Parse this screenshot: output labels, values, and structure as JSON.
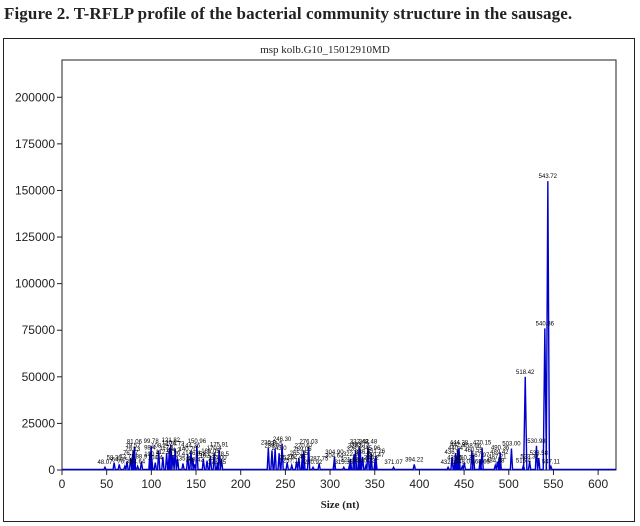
{
  "caption": "Figure 2. T-RFLP profile of the bacterial community structure in the sausage.",
  "chart_data": {
    "type": "line",
    "title": "msp kolb.G10_15012910MD",
    "xlabel": "Size (nt)",
    "ylabel": "",
    "xlim": [
      0,
      620
    ],
    "ylim": [
      0,
      220000
    ],
    "x_ticks": [
      0,
      50,
      100,
      150,
      200,
      250,
      300,
      350,
      400,
      450,
      500,
      550,
      600
    ],
    "y_ticks": [
      0,
      25000,
      50000,
      75000,
      100000,
      125000,
      150000,
      175000,
      200000
    ],
    "x_tick_labels": [
      "0",
      "50",
      "100",
      "150",
      "200",
      "250",
      "300",
      "350",
      "400",
      "450",
      "500",
      "550",
      "600"
    ],
    "y_tick_labels": [
      "0",
      "25000",
      "50000",
      "75000",
      "100000",
      "125000",
      "150000",
      "175000",
      "200000"
    ],
    "grid": false,
    "legend": "none",
    "colors": {
      "trace": "#0000cc",
      "axis": "#222222"
    },
    "series": [
      {
        "peaks": [
          {
            "x": 48.07,
            "y": 1500,
            "label": "48.07"
          },
          {
            "x": 58.36,
            "y": 4000,
            "label": "58.36"
          },
          {
            "x": 64.07,
            "y": 3000,
            "label": "64.07"
          },
          {
            "x": 70.35,
            "y": 2000,
            "label": "70.35"
          },
          {
            "x": 72.73,
            "y": 4500,
            "label": "72.73"
          },
          {
            "x": 76.77,
            "y": 6500,
            "label": "76.77"
          },
          {
            "x": 79.13,
            "y": 8500,
            "label": "79.13"
          },
          {
            "x": 79.57,
            "y": 10500,
            "label": "79.57"
          },
          {
            "x": 81.06,
            "y": 12500,
            "label": "81.06"
          },
          {
            "x": 84.64,
            "y": 2000,
            "label": "84.64"
          },
          {
            "x": 88.9,
            "y": 4500,
            "label": "88.9"
          },
          {
            "x": 98.4,
            "y": 9500,
            "label": "98.4"
          },
          {
            "x": 99.78,
            "y": 13000,
            "label": "99.78"
          },
          {
            "x": 100.5,
            "y": 6000,
            "label": "100.5"
          },
          {
            "x": 104.4,
            "y": 4000,
            "label": "104.4"
          },
          {
            "x": 108.2,
            "y": 10500,
            "label": "108.2"
          },
          {
            "x": 112.9,
            "y": 7000,
            "label": "112.9"
          },
          {
            "x": 117.1,
            "y": 9000,
            "label": "117.1"
          },
          {
            "x": 120.2,
            "y": 12000,
            "label": "120.2"
          },
          {
            "x": 121.82,
            "y": 13500,
            "label": "121.82"
          },
          {
            "x": 124.2,
            "y": 8000,
            "label": "124.2"
          },
          {
            "x": 126.72,
            "y": 11500,
            "label": "126.72"
          },
          {
            "x": 129.4,
            "y": 6000,
            "label": "129.4"
          },
          {
            "x": 135.4,
            "y": 3500,
            "label": "135.4"
          },
          {
            "x": 140.7,
            "y": 8500,
            "label": "140.70"
          },
          {
            "x": 144.36,
            "y": 10500,
            "label": "144.36"
          },
          {
            "x": 146.4,
            "y": 6500,
            "label": "146.4"
          },
          {
            "x": 148.42,
            "y": 3000,
            "label": "148.42"
          },
          {
            "x": 150.96,
            "y": 13000,
            "label": "150.96"
          },
          {
            "x": 158.2,
            "y": 6000,
            "label": "158.2"
          },
          {
            "x": 162.3,
            "y": 5000,
            "label": "162.3"
          },
          {
            "x": 166.05,
            "y": 7500,
            "label": "166.05"
          },
          {
            "x": 170.4,
            "y": 9000,
            "label": "170.4"
          },
          {
            "x": 173.35,
            "y": 1500,
            "label": "173.35"
          },
          {
            "x": 174.0,
            "y": 4000,
            "label": "174.00"
          },
          {
            "x": 175.91,
            "y": 11000,
            "label": "175.91"
          },
          {
            "x": 178.5,
            "y": 6000,
            "label": "178.5"
          },
          {
            "x": 230.9,
            "y": 12000,
            "label": "230.9"
          },
          {
            "x": 235.0,
            "y": 10500,
            "label": "235.0"
          },
          {
            "x": 238.5,
            "y": 11500,
            "label": "238.5"
          },
          {
            "x": 243.0,
            "y": 9000,
            "label": "243.0"
          },
          {
            "x": 246.3,
            "y": 14000,
            "label": "246.30"
          },
          {
            "x": 252.0,
            "y": 4000,
            "label": "252.0"
          },
          {
            "x": 257.11,
            "y": 2500,
            "label": "257.11"
          },
          {
            "x": 262.46,
            "y": 4500,
            "label": "262.46"
          },
          {
            "x": 265.05,
            "y": 6500,
            "label": "265.05"
          },
          {
            "x": 269.05,
            "y": 8500,
            "label": "269.05"
          },
          {
            "x": 270.67,
            "y": 10500,
            "label": "270.67"
          },
          {
            "x": 276.03,
            "y": 12500,
            "label": "276.03"
          },
          {
            "x": 280.92,
            "y": 1500,
            "label": "280.92"
          },
          {
            "x": 287.75,
            "y": 3500,
            "label": "287.75"
          },
          {
            "x": 304.64,
            "y": 5000,
            "label": "304.64"
          },
          {
            "x": 304.9,
            "y": 7000,
            "label": "304.90"
          },
          {
            "x": 315.35,
            "y": 1500,
            "label": "315.35"
          },
          {
            "x": 321.88,
            "y": 3000,
            "label": "321.88"
          },
          {
            "x": 322.8,
            "y": 6000,
            "label": "322.8"
          },
          {
            "x": 326.8,
            "y": 8500,
            "label": "326.8"
          },
          {
            "x": 328.5,
            "y": 10500,
            "label": "328.5"
          },
          {
            "x": 332.48,
            "y": 12500,
            "label": "332.48"
          },
          {
            "x": 333.73,
            "y": 11000,
            "label": "333.73"
          },
          {
            "x": 336.5,
            "y": 7000,
            "label": "336.5"
          },
          {
            "x": 340.22,
            "y": 2500,
            "label": "340.22"
          },
          {
            "x": 342.48,
            "y": 12500,
            "label": "342.48"
          },
          {
            "x": 345.96,
            "y": 9000,
            "label": "345.96"
          },
          {
            "x": 346.2,
            "y": 4000,
            "label": "346.2"
          },
          {
            "x": 350.47,
            "y": 5500,
            "label": "350.47"
          },
          {
            "x": 351.26,
            "y": 7500,
            "label": "351.26"
          },
          {
            "x": 371.07,
            "y": 1500,
            "label": "371.07"
          },
          {
            "x": 394.22,
            "y": 3000,
            "label": "394.22"
          },
          {
            "x": 432.1,
            "y": 1500,
            "label": "432.1"
          },
          {
            "x": 436.5,
            "y": 7000,
            "label": "436.5"
          },
          {
            "x": 439.5,
            "y": 4000,
            "label": "439.5"
          },
          {
            "x": 440.4,
            "y": 9000,
            "label": "440.4"
          },
          {
            "x": 442.9,
            "y": 11000,
            "label": "442.9"
          },
          {
            "x": 444.28,
            "y": 12000,
            "label": "444.28"
          },
          {
            "x": 448.0,
            "y": 2000,
            "label": "448.0"
          },
          {
            "x": 450.2,
            "y": 4000,
            "label": "450.2"
          },
          {
            "x": 458.66,
            "y": 10500,
            "label": "458.66"
          },
          {
            "x": 460.55,
            "y": 8000,
            "label": "460.55"
          },
          {
            "x": 467.97,
            "y": 5500,
            "label": "467.97"
          },
          {
            "x": 468.65,
            "y": 1800,
            "label": "468.65"
          },
          {
            "x": 470.15,
            "y": 12000,
            "label": "470.15"
          },
          {
            "x": 484.88,
            "y": 2500,
            "label": "484.88"
          },
          {
            "x": 487.21,
            "y": 4500,
            "label": "487.21"
          },
          {
            "x": 489.42,
            "y": 7000,
            "label": "489.42"
          },
          {
            "x": 490.36,
            "y": 9500,
            "label": "490.36"
          },
          {
            "x": 503.0,
            "y": 11500,
            "label": "503.00"
          },
          {
            "x": 516.4,
            "y": 2500,
            "label": "516.4"
          },
          {
            "x": 518.42,
            "y": 50000,
            "label": "518.42"
          },
          {
            "x": 523.32,
            "y": 4500,
            "label": "523.32"
          },
          {
            "x": 530.98,
            "y": 13000,
            "label": "530.98"
          },
          {
            "x": 533.58,
            "y": 6500,
            "label": "533.58"
          },
          {
            "x": 540.36,
            "y": 76000,
            "label": "540.36"
          },
          {
            "x": 543.72,
            "y": 155000,
            "label": "543.72"
          },
          {
            "x": 547.11,
            "y": 2000,
            "label": "547.11"
          }
        ]
      }
    ]
  }
}
